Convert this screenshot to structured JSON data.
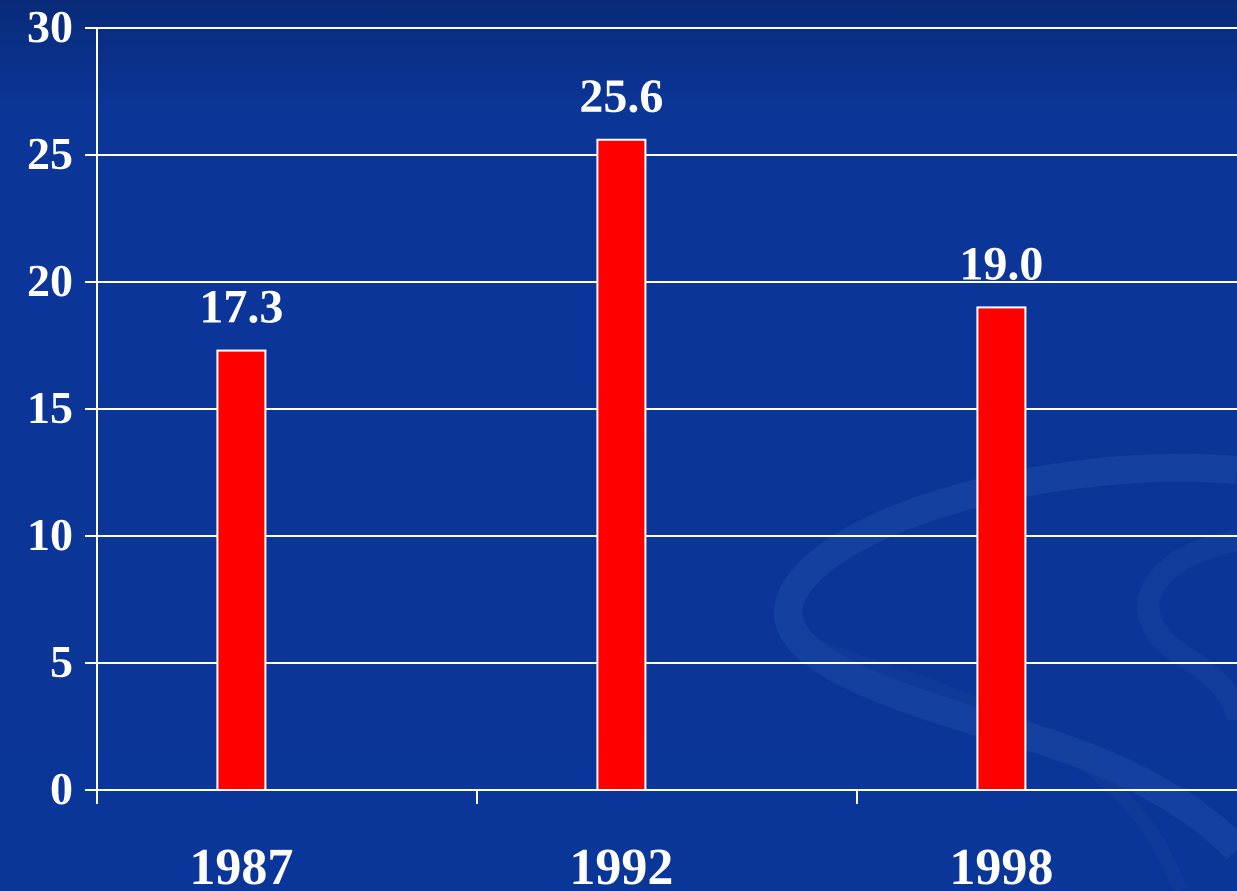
{
  "chart_data": {
    "type": "bar",
    "title": "",
    "xlabel": "",
    "ylabel": "",
    "categories": [
      "1987",
      "1992",
      "1998"
    ],
    "values": [
      17.3,
      25.6,
      19.0
    ],
    "data_labels": [
      "17.3",
      "25.6",
      "19.0"
    ],
    "ylim": [
      0,
      30
    ],
    "yticks": [
      0,
      5,
      10,
      15,
      20,
      25,
      30
    ],
    "ytick_labels": [
      "0",
      "5",
      "10",
      "15",
      "20",
      "25",
      "30"
    ],
    "grid": true,
    "legend": "none",
    "colors": {
      "background": "#0b3699",
      "bar_fill": "#ff0000",
      "bar_stroke": "#ffffff",
      "grid": "#ffffff",
      "text": "#ffffff"
    }
  }
}
